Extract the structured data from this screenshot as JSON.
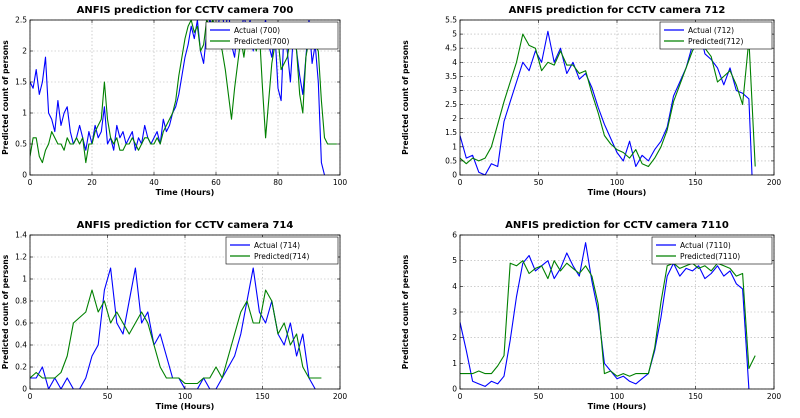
{
  "chart_data": [
    {
      "type": "line",
      "title": "ANFIS prediction for CCTV camera 700",
      "xlabel": "Time (Hours)",
      "ylabel": "Predicted count of persons",
      "xlim": [
        0,
        100
      ],
      "ylim": [
        0,
        2.5
      ],
      "xticks": [
        "0",
        "20",
        "40",
        "60",
        "80",
        "100"
      ],
      "yticks": [
        "0",
        "0.5",
        "1",
        "1.5",
        "2",
        "2.5"
      ],
      "grid": true,
      "legend": "top-right",
      "series": [
        {
          "name": "Actual (700)",
          "color": "#0000ff",
          "x": [
            0,
            1,
            2,
            3,
            4,
            5,
            6,
            7,
            8,
            9,
            10,
            11,
            12,
            13,
            14,
            15,
            16,
            17,
            18,
            19,
            20,
            21,
            22,
            23,
            24,
            25,
            26,
            27,
            28,
            29,
            30,
            31,
            32,
            33,
            34,
            35,
            36,
            37,
            38,
            39,
            40,
            41,
            42,
            43,
            44,
            45,
            46,
            47,
            48,
            49,
            50,
            51,
            52,
            53,
            54,
            55,
            56,
            57,
            58,
            59,
            60,
            61,
            62,
            63,
            64,
            65,
            66,
            67,
            68,
            69,
            70,
            71,
            72,
            73,
            74,
            75,
            76,
            77,
            78,
            79,
            80,
            81,
            82,
            83,
            84,
            85,
            86,
            87,
            88,
            89,
            90,
            91,
            92,
            93,
            94,
            95
          ],
          "y": [
            1.5,
            1.4,
            1.7,
            1.3,
            1.5,
            1.9,
            1.0,
            0.9,
            0.7,
            1.2,
            0.8,
            1.0,
            1.1,
            0.7,
            0.5,
            0.6,
            0.8,
            0.6,
            0.4,
            0.7,
            0.5,
            0.8,
            0.6,
            0.7,
            1.1,
            0.5,
            0.6,
            0.4,
            0.8,
            0.6,
            0.7,
            0.5,
            0.6,
            0.7,
            0.4,
            0.6,
            0.5,
            0.8,
            0.6,
            0.5,
            0.6,
            0.7,
            0.5,
            0.9,
            0.7,
            0.8,
            1.0,
            1.1,
            1.3,
            1.6,
            1.9,
            2.1,
            2.4,
            2.2,
            2.5,
            2.0,
            1.8,
            2.3,
            2.5,
            2.4,
            2.2,
            2.5,
            2.6,
            2.3,
            2.7,
            2.1,
            1.9,
            2.4,
            2.2,
            2.6,
            2.3,
            2.5,
            2.0,
            2.4,
            2.2,
            2.3,
            2.5,
            2.1,
            1.9,
            2.3,
            1.4,
            1.2,
            2.4,
            2.0,
            1.5,
            2.3,
            2.0,
            1.6,
            1.3,
            1.9,
            2.5,
            1.8,
            2.1,
            1.5,
            0.2,
            0.0
          ]
        },
        {
          "name": "Predicted(700)",
          "color": "#008000",
          "x": [
            0,
            1,
            2,
            3,
            4,
            5,
            6,
            7,
            8,
            9,
            10,
            11,
            12,
            13,
            14,
            15,
            16,
            17,
            18,
            19,
            20,
            21,
            22,
            23,
            24,
            25,
            26,
            27,
            28,
            29,
            30,
            31,
            32,
            33,
            34,
            35,
            36,
            37,
            38,
            39,
            40,
            41,
            42,
            43,
            44,
            45,
            46,
            47,
            48,
            49,
            50,
            51,
            52,
            53,
            54,
            55,
            56,
            57,
            58,
            59,
            60,
            61,
            62,
            63,
            64,
            65,
            66,
            67,
            68,
            69,
            70,
            71,
            72,
            73,
            74,
            75,
            76,
            77,
            78,
            79,
            80,
            81,
            82,
            83,
            84,
            85,
            86,
            87,
            88,
            89,
            90,
            91,
            92,
            93,
            94,
            95,
            96,
            97,
            98,
            99
          ],
          "y": [
            0.3,
            0.6,
            0.6,
            0.3,
            0.2,
            0.4,
            0.5,
            0.7,
            0.6,
            0.5,
            0.5,
            0.4,
            0.6,
            0.5,
            0.5,
            0.6,
            0.5,
            0.6,
            0.2,
            0.5,
            0.5,
            0.7,
            0.8,
            0.9,
            1.5,
            0.9,
            0.6,
            0.5,
            0.6,
            0.4,
            0.4,
            0.5,
            0.5,
            0.6,
            0.5,
            0.4,
            0.5,
            0.6,
            0.6,
            0.5,
            0.5,
            0.6,
            0.5,
            0.7,
            0.8,
            0.9,
            1.0,
            1.2,
            1.6,
            1.9,
            2.2,
            2.4,
            2.5,
            2.3,
            2.4,
            2.0,
            2.1,
            2.5,
            2.4,
            2.5,
            2.3,
            2.2,
            2.0,
            1.7,
            1.3,
            0.9,
            1.4,
            1.8,
            2.2,
            1.9,
            2.3,
            2.4,
            2.2,
            2.0,
            2.3,
            1.4,
            0.6,
            1.2,
            1.8,
            2.1,
            2.2,
            1.7,
            1.8,
            1.9,
            2.2,
            2.4,
            2.0,
            1.3,
            1.0,
            1.9,
            2.2,
            2.3,
            2.1,
            2.0,
            1.2,
            0.6,
            0.5,
            0.5,
            0.5,
            0.5
          ]
        }
      ]
    },
    {
      "type": "line",
      "title": "ANFIS prediction for CCTV camera 712",
      "xlabel": "Time (Hours)",
      "ylabel": "Predicted count of persons",
      "xlim": [
        0,
        200
      ],
      "ylim": [
        0,
        5.5
      ],
      "xticks": [
        "0",
        "50",
        "100",
        "150",
        "200"
      ],
      "yticks": [
        "0",
        "0.5",
        "1",
        "1.5",
        "2",
        "2.5",
        "3",
        "3.5",
        "4",
        "4.5",
        "5",
        "5.5"
      ],
      "grid": true,
      "legend": "top-right",
      "series": [
        {
          "name": "Actual (712)",
          "color": "#0000ff",
          "x": [
            0,
            4,
            8,
            12,
            16,
            20,
            24,
            28,
            32,
            36,
            40,
            44,
            48,
            52,
            56,
            60,
            64,
            68,
            72,
            76,
            80,
            84,
            88,
            92,
            96,
            100,
            104,
            108,
            112,
            116,
            120,
            124,
            128,
            132,
            136,
            140,
            144,
            148,
            152,
            156,
            160,
            164,
            168,
            172,
            176,
            180,
            184,
            186
          ],
          "y": [
            1.4,
            0.6,
            0.7,
            0.1,
            0.0,
            0.4,
            0.3,
            1.9,
            2.6,
            3.3,
            4.0,
            3.7,
            4.4,
            4.0,
            5.1,
            4.0,
            4.5,
            3.6,
            4.0,
            3.4,
            3.6,
            3.1,
            2.4,
            1.8,
            1.3,
            0.8,
            0.5,
            1.2,
            0.3,
            0.7,
            0.5,
            0.9,
            1.2,
            1.7,
            2.8,
            3.3,
            3.8,
            4.6,
            5.3,
            4.3,
            4.1,
            3.8,
            3.2,
            3.8,
            3.0,
            2.9,
            2.7,
            0.0
          ]
        },
        {
          "name": "Predicted(712)",
          "color": "#008000",
          "x": [
            0,
            4,
            8,
            12,
            16,
            20,
            24,
            28,
            32,
            36,
            40,
            44,
            48,
            52,
            56,
            60,
            64,
            68,
            72,
            76,
            80,
            84,
            88,
            92,
            96,
            100,
            104,
            108,
            112,
            116,
            120,
            124,
            128,
            132,
            136,
            140,
            144,
            148,
            152,
            156,
            160,
            164,
            168,
            172,
            176,
            180,
            184,
            188
          ],
          "y": [
            0.6,
            0.4,
            0.6,
            0.5,
            0.6,
            1.0,
            1.8,
            2.6,
            3.3,
            4.0,
            5.0,
            4.6,
            4.5,
            3.7,
            4.0,
            3.9,
            4.4,
            3.9,
            3.9,
            3.6,
            3.7,
            2.9,
            2.2,
            1.4,
            1.1,
            0.9,
            0.8,
            0.6,
            0.9,
            0.4,
            0.3,
            0.6,
            1.0,
            1.6,
            2.6,
            3.2,
            3.8,
            4.4,
            4.8,
            4.5,
            4.2,
            3.3,
            3.5,
            3.7,
            3.2,
            2.5,
            4.8,
            0.3
          ]
        }
      ]
    },
    {
      "type": "line",
      "title": "ANFIS prediction for CCTV camera 714",
      "xlabel": "Time (Hours)",
      "ylabel": "Predicted count of persons",
      "xlim": [
        0,
        200
      ],
      "ylim": [
        0,
        1.4
      ],
      "xticks": [
        "0",
        "50",
        "100",
        "150",
        "200"
      ],
      "yticks": [
        "0",
        "0.2",
        "0.4",
        "0.6",
        "0.8",
        "1",
        "1.2",
        "1.4"
      ],
      "grid": true,
      "legend": "top-right",
      "series": [
        {
          "name": "Actual (714)",
          "color": "#0000ff",
          "x": [
            0,
            4,
            8,
            12,
            16,
            20,
            24,
            28,
            32,
            36,
            40,
            44,
            48,
            52,
            56,
            60,
            64,
            68,
            72,
            76,
            80,
            84,
            88,
            92,
            96,
            100,
            104,
            108,
            112,
            116,
            120,
            124,
            128,
            132,
            136,
            140,
            144,
            148,
            152,
            156,
            160,
            164,
            168,
            172,
            176,
            180,
            184
          ],
          "y": [
            0.1,
            0.1,
            0.2,
            0.0,
            0.1,
            0.0,
            0.1,
            0.0,
            0.0,
            0.1,
            0.3,
            0.4,
            0.9,
            1.1,
            0.6,
            0.5,
            0.8,
            1.1,
            0.6,
            0.7,
            0.4,
            0.5,
            0.3,
            0.1,
            0.1,
            0.0,
            0.0,
            0.0,
            0.1,
            0.0,
            0.0,
            0.1,
            0.2,
            0.3,
            0.5,
            0.8,
            1.1,
            0.7,
            0.6,
            0.8,
            0.5,
            0.4,
            0.6,
            0.3,
            0.5,
            0.1,
            0.0
          ]
        },
        {
          "name": "Predicted(714)",
          "color": "#008000",
          "x": [
            0,
            4,
            8,
            12,
            16,
            20,
            24,
            28,
            32,
            36,
            40,
            44,
            48,
            52,
            56,
            60,
            64,
            68,
            72,
            76,
            80,
            84,
            88,
            92,
            96,
            100,
            104,
            108,
            112,
            116,
            120,
            124,
            128,
            132,
            136,
            140,
            144,
            148,
            152,
            156,
            160,
            164,
            168,
            172,
            176,
            180,
            184,
            188
          ],
          "y": [
            0.1,
            0.15,
            0.1,
            0.1,
            0.1,
            0.15,
            0.3,
            0.6,
            0.65,
            0.7,
            0.9,
            0.7,
            0.8,
            0.6,
            0.7,
            0.6,
            0.5,
            0.6,
            0.7,
            0.6,
            0.4,
            0.2,
            0.1,
            0.1,
            0.1,
            0.05,
            0.05,
            0.05,
            0.1,
            0.1,
            0.2,
            0.1,
            0.3,
            0.5,
            0.7,
            0.8,
            0.6,
            0.6,
            0.9,
            0.8,
            0.5,
            0.6,
            0.4,
            0.5,
            0.2,
            0.1,
            0.1,
            0.1
          ]
        }
      ]
    },
    {
      "type": "line",
      "title": "ANFIS prediction for CCTV camera 7110",
      "xlabel": "Time (Hours)",
      "ylabel": "Predicted count of persons",
      "xlim": [
        0,
        200
      ],
      "ylim": [
        0,
        6
      ],
      "xticks": [
        "0",
        "50",
        "100",
        "150",
        "200"
      ],
      "yticks": [
        "0",
        "1",
        "2",
        "3",
        "4",
        "5",
        "6"
      ],
      "grid": true,
      "legend": "top-right",
      "series": [
        {
          "name": "Actual (7110)",
          "color": "#0000ff",
          "x": [
            0,
            4,
            8,
            12,
            16,
            20,
            24,
            28,
            32,
            36,
            40,
            44,
            48,
            52,
            56,
            60,
            64,
            68,
            72,
            76,
            80,
            84,
            88,
            92,
            96,
            100,
            104,
            108,
            112,
            116,
            120,
            124,
            128,
            132,
            136,
            140,
            144,
            148,
            152,
            156,
            160,
            164,
            168,
            172,
            176,
            180,
            184
          ],
          "y": [
            2.6,
            1.5,
            0.3,
            0.2,
            0.1,
            0.3,
            0.2,
            0.5,
            1.9,
            3.6,
            4.9,
            5.2,
            4.6,
            4.8,
            5.0,
            4.3,
            4.7,
            5.3,
            4.8,
            4.4,
            5.7,
            4.2,
            3.0,
            1.0,
            0.7,
            0.4,
            0.5,
            0.3,
            0.2,
            0.4,
            0.6,
            1.5,
            2.8,
            4.4,
            4.9,
            4.4,
            4.7,
            4.6,
            4.8,
            4.3,
            4.5,
            4.8,
            4.4,
            4.6,
            4.1,
            3.9,
            0.0
          ]
        },
        {
          "name": "Predicted(7110)",
          "color": "#008000",
          "x": [
            0,
            4,
            8,
            12,
            16,
            20,
            24,
            28,
            32,
            36,
            40,
            44,
            48,
            52,
            56,
            60,
            64,
            68,
            72,
            76,
            80,
            84,
            88,
            92,
            96,
            100,
            104,
            108,
            112,
            116,
            120,
            124,
            128,
            132,
            136,
            140,
            144,
            148,
            152,
            156,
            160,
            164,
            168,
            172,
            176,
            180,
            184,
            188
          ],
          "y": [
            0.6,
            0.6,
            0.6,
            0.7,
            0.6,
            0.6,
            0.9,
            1.3,
            4.9,
            4.8,
            5.0,
            4.5,
            4.7,
            4.8,
            4.3,
            5.0,
            4.6,
            4.9,
            4.7,
            4.5,
            4.8,
            4.4,
            3.3,
            0.6,
            0.7,
            0.5,
            0.6,
            0.5,
            0.6,
            0.6,
            0.6,
            1.6,
            3.4,
            4.8,
            4.9,
            4.7,
            4.8,
            4.9,
            4.7,
            4.8,
            4.6,
            4.9,
            4.8,
            4.7,
            4.4,
            4.5,
            0.8,
            1.3
          ]
        }
      ]
    }
  ]
}
